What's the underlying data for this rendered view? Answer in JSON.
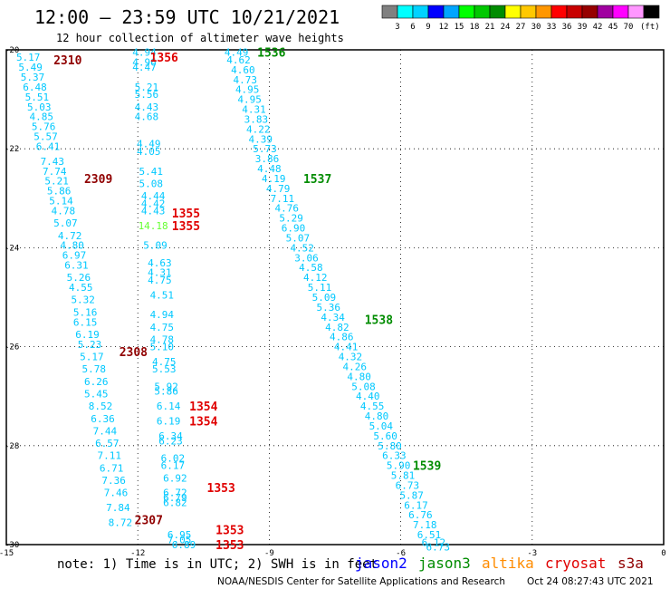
{
  "header": {
    "title": "12:00 – 23:59 UTC 10/21/2021",
    "subtitle": "12 hour collection of altimeter wave heights"
  },
  "legend": {
    "unit": "(ft)",
    "colors": [
      "#808080",
      "#00ffff",
      "#00d2ff",
      "#0000ff",
      "#00a5ff",
      "#00ff00",
      "#00c800",
      "#008c00",
      "#ffff00",
      "#ffc800",
      "#ff9600",
      "#ff0000",
      "#c80000",
      "#960000",
      "#a000a0",
      "#ff00ff",
      "#ff96ff",
      "#000000"
    ],
    "labels": [
      "3",
      "6",
      "9",
      "12",
      "15",
      "18",
      "21",
      "24",
      "27",
      "30",
      "33",
      "36",
      "39",
      "42",
      "45",
      "70"
    ]
  },
  "footer": {
    "note": "note:  1) Time is in UTC;  2) SWH is in feet",
    "satellites": [
      {
        "name": "jason2",
        "color": "#0000ff"
      },
      {
        "name": "jason3",
        "color": "#008c00"
      },
      {
        "name": "altika",
        "color": "#ff8c00"
      },
      {
        "name": "cryosat",
        "color": "#e00000"
      },
      {
        "name": "s3a",
        "color": "#900000"
      }
    ],
    "credit": "NOAA/NESDIS Center for Satellite Applications and Research",
    "timestamp": "Oct 24 08:27:43 UTC 2021"
  },
  "chart_data": {
    "type": "scatter",
    "xlim": [
      -15,
      0
    ],
    "ylim": [
      -30,
      -20
    ],
    "xticks": [
      "-15",
      "-12",
      "-9",
      "-6",
      "-3",
      "0"
    ],
    "yticks": [
      "-20",
      "-22",
      "-24",
      "-26",
      "-28",
      "-30"
    ],
    "grid": true,
    "pass_labels": [
      {
        "text": "2310",
        "x": -13.6,
        "y": -20.2,
        "color": "#900000"
      },
      {
        "text": "1356",
        "x": -11.4,
        "y": -20.15,
        "color": "#e00000"
      },
      {
        "text": "1536",
        "x": -8.95,
        "y": -20.05,
        "color": "#008c00"
      },
      {
        "text": "2309",
        "x": -12.9,
        "y": -22.6,
        "color": "#900000"
      },
      {
        "text": "1537",
        "x": -7.9,
        "y": -22.6,
        "color": "#008c00"
      },
      {
        "text": "1355",
        "x": -10.9,
        "y": -23.3,
        "color": "#e00000"
      },
      {
        "text": "1355",
        "x": -10.9,
        "y": -23.55,
        "color": "#e00000"
      },
      {
        "text": "1538",
        "x": -6.5,
        "y": -25.45,
        "color": "#008c00"
      },
      {
        "text": "2308",
        "x": -12.1,
        "y": -26.1,
        "color": "#900000"
      },
      {
        "text": "1354",
        "x": -10.5,
        "y": -27.2,
        "color": "#e00000"
      },
      {
        "text": "1354",
        "x": -10.5,
        "y": -27.5,
        "color": "#e00000"
      },
      {
        "text": "1539",
        "x": -5.4,
        "y": -28.4,
        "color": "#008c00"
      },
      {
        "text": "1353",
        "x": -10.1,
        "y": -28.85,
        "color": "#e00000"
      },
      {
        "text": "2307",
        "x": -11.75,
        "y": -29.5,
        "color": "#900000"
      },
      {
        "text": "1353",
        "x": -9.9,
        "y": -29.7,
        "color": "#e00000"
      },
      {
        "text": "1353",
        "x": -9.9,
        "y": -30.0,
        "color": "#e00000"
      }
    ],
    "series": [
      {
        "color": "#00c8ff",
        "points": [
          {
            "x": -14.5,
            "y": -20.15,
            "v": "5.17"
          },
          {
            "x": -14.45,
            "y": -20.35,
            "v": "5.49"
          },
          {
            "x": -14.4,
            "y": -20.55,
            "v": "5.37"
          },
          {
            "x": -14.35,
            "y": -20.75,
            "v": "6.48"
          },
          {
            "x": -14.3,
            "y": -20.95,
            "v": "5.51"
          },
          {
            "x": -14.25,
            "y": -21.15,
            "v": "5.03"
          },
          {
            "x": -14.2,
            "y": -21.35,
            "v": "4.85"
          },
          {
            "x": -14.15,
            "y": -21.55,
            "v": "5.76"
          },
          {
            "x": -14.1,
            "y": -21.75,
            "v": "5.57"
          },
          {
            "x": -14.05,
            "y": -21.95,
            "v": "6.41"
          },
          {
            "x": -13.95,
            "y": -22.25,
            "v": "7.43"
          },
          {
            "x": -13.9,
            "y": -22.45,
            "v": "7.74"
          },
          {
            "x": -13.85,
            "y": -22.65,
            "v": "5.21"
          },
          {
            "x": -13.8,
            "y": -22.85,
            "v": "5.86"
          },
          {
            "x": -13.75,
            "y": -23.05,
            "v": "5.14"
          },
          {
            "x": -13.7,
            "y": -23.25,
            "v": "4.78"
          },
          {
            "x": -13.65,
            "y": -23.5,
            "v": "5.07"
          },
          {
            "x": -13.55,
            "y": -23.75,
            "v": "4.72"
          },
          {
            "x": -13.5,
            "y": -23.95,
            "v": "4.80"
          },
          {
            "x": -13.45,
            "y": -24.15,
            "v": "6.97"
          },
          {
            "x": -13.4,
            "y": -24.35,
            "v": "6.31"
          },
          {
            "x": -13.35,
            "y": -24.6,
            "v": "5.26"
          },
          {
            "x": -13.3,
            "y": -24.8,
            "v": "4.55"
          },
          {
            "x": -13.25,
            "y": -25.05,
            "v": "5.32"
          },
          {
            "x": -13.2,
            "y": -25.3,
            "v": "5.16"
          },
          {
            "x": -13.2,
            "y": -25.5,
            "v": "6.15"
          },
          {
            "x": -13.15,
            "y": -25.75,
            "v": "6.19"
          },
          {
            "x": -13.1,
            "y": -25.95,
            "v": "5.23"
          },
          {
            "x": -13.05,
            "y": -26.2,
            "v": "5.17"
          },
          {
            "x": -13.0,
            "y": -26.45,
            "v": "5.78"
          },
          {
            "x": -12.95,
            "y": -26.7,
            "v": "6.26"
          },
          {
            "x": -12.95,
            "y": -26.95,
            "v": "5.45"
          },
          {
            "x": -12.85,
            "y": -27.2,
            "v": "8.52"
          },
          {
            "x": -12.8,
            "y": -27.45,
            "v": "6.36"
          },
          {
            "x": -12.75,
            "y": -27.7,
            "v": "7.44"
          },
          {
            "x": -12.7,
            "y": -27.95,
            "v": "6.57"
          },
          {
            "x": -12.65,
            "y": -28.2,
            "v": "7.11"
          },
          {
            "x": -12.6,
            "y": -28.45,
            "v": "6.71"
          },
          {
            "x": -12.55,
            "y": -28.7,
            "v": "7.36"
          },
          {
            "x": -12.5,
            "y": -28.95,
            "v": "7.46"
          },
          {
            "x": -12.45,
            "y": -29.25,
            "v": "7.84"
          },
          {
            "x": -12.4,
            "y": -29.55,
            "v": "8.72"
          }
        ]
      },
      {
        "color": "#00c8ff",
        "points": [
          {
            "x": -11.85,
            "y": -20.05,
            "v": "4.94"
          },
          {
            "x": -11.85,
            "y": -20.25,
            "v": "4.96"
          },
          {
            "x": -11.85,
            "y": -20.35,
            "v": "4.47"
          },
          {
            "x": -11.8,
            "y": -20.75,
            "v": "5.21"
          },
          {
            "x": -11.8,
            "y": -20.9,
            "v": "5.56"
          },
          {
            "x": -11.8,
            "y": -21.15,
            "v": "4.43"
          },
          {
            "x": -11.8,
            "y": -21.35,
            "v": "4.68"
          },
          {
            "x": -11.75,
            "y": -21.9,
            "v": "4.49"
          },
          {
            "x": -11.75,
            "y": -22.05,
            "v": "4.05"
          },
          {
            "x": -11.7,
            "y": -22.45,
            "v": "5.41"
          },
          {
            "x": -11.7,
            "y": -22.7,
            "v": "5.08"
          },
          {
            "x": -11.65,
            "y": -22.95,
            "v": "4.44"
          },
          {
            "x": -11.65,
            "y": -23.1,
            "v": "4.42"
          },
          {
            "x": -11.65,
            "y": -23.25,
            "v": "4.43"
          },
          {
            "x": -11.6,
            "y": -23.95,
            "v": "5.09"
          },
          {
            "x": -11.5,
            "y": -24.3,
            "v": "4.63"
          },
          {
            "x": -11.5,
            "y": -24.5,
            "v": "4.31"
          },
          {
            "x": -11.5,
            "y": -24.65,
            "v": "4.75"
          },
          {
            "x": -11.45,
            "y": -24.95,
            "v": "4.51"
          },
          {
            "x": -11.45,
            "y": -25.35,
            "v": "4.94"
          },
          {
            "x": -11.45,
            "y": -25.6,
            "v": "4.75"
          },
          {
            "x": -11.45,
            "y": -25.85,
            "v": "4.78"
          },
          {
            "x": -11.45,
            "y": -26.0,
            "v": "5.10"
          },
          {
            "x": -11.4,
            "y": -26.3,
            "v": "4.75"
          },
          {
            "x": -11.4,
            "y": -26.45,
            "v": "5.53"
          },
          {
            "x": -11.35,
            "y": -26.8,
            "v": "5.92"
          },
          {
            "x": -11.35,
            "y": -26.9,
            "v": "5.86"
          },
          {
            "x": -11.3,
            "y": -27.2,
            "v": "6.14"
          },
          {
            "x": -11.3,
            "y": -27.5,
            "v": "6.19"
          },
          {
            "x": -11.25,
            "y": -27.8,
            "v": "6.34"
          },
          {
            "x": -11.25,
            "y": -27.9,
            "v": "6.23"
          },
          {
            "x": -11.2,
            "y": -28.25,
            "v": "6.02"
          },
          {
            "x": -11.2,
            "y": -28.4,
            "v": "6.17"
          },
          {
            "x": -11.15,
            "y": -28.65,
            "v": "6.92"
          },
          {
            "x": -11.15,
            "y": -28.95,
            "v": "6.72"
          },
          {
            "x": -11.15,
            "y": -29.05,
            "v": "6.79"
          },
          {
            "x": -11.15,
            "y": -29.15,
            "v": "6.82"
          },
          {
            "x": -11.05,
            "y": -29.8,
            "v": "6.95"
          },
          {
            "x": -11.05,
            "y": -29.9,
            "v": "7.05"
          },
          {
            "x": -10.95,
            "y": -30.0,
            "v": "6.89"
          }
        ]
      },
      {
        "color": "#00c8ff",
        "points": [
          {
            "x": -9.75,
            "y": -20.05,
            "v": "4.49"
          },
          {
            "x": -9.7,
            "y": -20.2,
            "v": "4.62"
          },
          {
            "x": -9.6,
            "y": -20.4,
            "v": "4.60"
          },
          {
            "x": -9.55,
            "y": -20.6,
            "v": "4.73"
          },
          {
            "x": -9.5,
            "y": -20.8,
            "v": "4.95"
          },
          {
            "x": -9.45,
            "y": -21.0,
            "v": "4.95"
          },
          {
            "x": -9.35,
            "y": -21.2,
            "v": "4.31"
          },
          {
            "x": -9.3,
            "y": -21.4,
            "v": "3.83"
          },
          {
            "x": -9.25,
            "y": -21.6,
            "v": "4.22"
          },
          {
            "x": -9.2,
            "y": -21.8,
            "v": "4.39"
          },
          {
            "x": -9.1,
            "y": -22.0,
            "v": "5.73"
          },
          {
            "x": -9.05,
            "y": -22.2,
            "v": "3.86"
          },
          {
            "x": -9.0,
            "y": -22.4,
            "v": "4.48"
          },
          {
            "x": -8.9,
            "y": -22.6,
            "v": "4.19"
          },
          {
            "x": -8.8,
            "y": -22.8,
            "v": "4.79"
          },
          {
            "x": -8.7,
            "y": -23.0,
            "v": "7.11"
          },
          {
            "x": -8.6,
            "y": -23.2,
            "v": "4.76"
          },
          {
            "x": -8.5,
            "y": -23.4,
            "v": "5.29"
          },
          {
            "x": -8.45,
            "y": -23.6,
            "v": "6.90"
          },
          {
            "x": -8.35,
            "y": -23.8,
            "v": "5.07"
          },
          {
            "x": -8.25,
            "y": -24.0,
            "v": "4.52"
          },
          {
            "x": -8.15,
            "y": -24.2,
            "v": "3.06"
          },
          {
            "x": -8.05,
            "y": -24.4,
            "v": "4.58"
          },
          {
            "x": -7.95,
            "y": -24.6,
            "v": "4.12"
          },
          {
            "x": -7.85,
            "y": -24.8,
            "v": "5.11"
          },
          {
            "x": -7.75,
            "y": -25.0,
            "v": "5.09"
          },
          {
            "x": -7.65,
            "y": -25.2,
            "v": "5.36"
          },
          {
            "x": -7.55,
            "y": -25.4,
            "v": "4.34"
          },
          {
            "x": -7.45,
            "y": -25.6,
            "v": "4.82"
          },
          {
            "x": -7.35,
            "y": -25.8,
            "v": "4.86"
          },
          {
            "x": -7.25,
            "y": -26.0,
            "v": "4.41"
          },
          {
            "x": -7.15,
            "y": -26.2,
            "v": "4.32"
          },
          {
            "x": -7.05,
            "y": -26.4,
            "v": "4.26"
          },
          {
            "x": -6.95,
            "y": -26.6,
            "v": "4.80"
          },
          {
            "x": -6.85,
            "y": -26.8,
            "v": "5.08"
          },
          {
            "x": -6.75,
            "y": -27.0,
            "v": "4.40"
          },
          {
            "x": -6.65,
            "y": -27.2,
            "v": "4.55"
          },
          {
            "x": -6.55,
            "y": -27.4,
            "v": "4.80"
          },
          {
            "x": -6.45,
            "y": -27.6,
            "v": "5.04"
          },
          {
            "x": -6.35,
            "y": -27.8,
            "v": "5.60"
          },
          {
            "x": -6.25,
            "y": -28.0,
            "v": "5.80"
          },
          {
            "x": -6.15,
            "y": -28.2,
            "v": "6.33"
          },
          {
            "x": -6.05,
            "y": -28.4,
            "v": "5.90"
          },
          {
            "x": -5.95,
            "y": -28.6,
            "v": "5.81"
          },
          {
            "x": -5.85,
            "y": -28.8,
            "v": "6.73"
          },
          {
            "x": -5.75,
            "y": -29.0,
            "v": "5.87"
          },
          {
            "x": -5.65,
            "y": -29.2,
            "v": "6.17"
          },
          {
            "x": -5.55,
            "y": -29.4,
            "v": "6.76"
          },
          {
            "x": -5.45,
            "y": -29.6,
            "v": "7.18"
          },
          {
            "x": -5.35,
            "y": -29.8,
            "v": "6.51"
          },
          {
            "x": -5.25,
            "y": -29.95,
            "v": "6.12"
          },
          {
            "x": -5.15,
            "y": -30.05,
            "v": "6.73"
          }
        ]
      },
      {
        "color": "#66ff33",
        "points": [
          {
            "x": -11.65,
            "y": -23.55,
            "v": "14.18"
          }
        ]
      }
    ]
  }
}
